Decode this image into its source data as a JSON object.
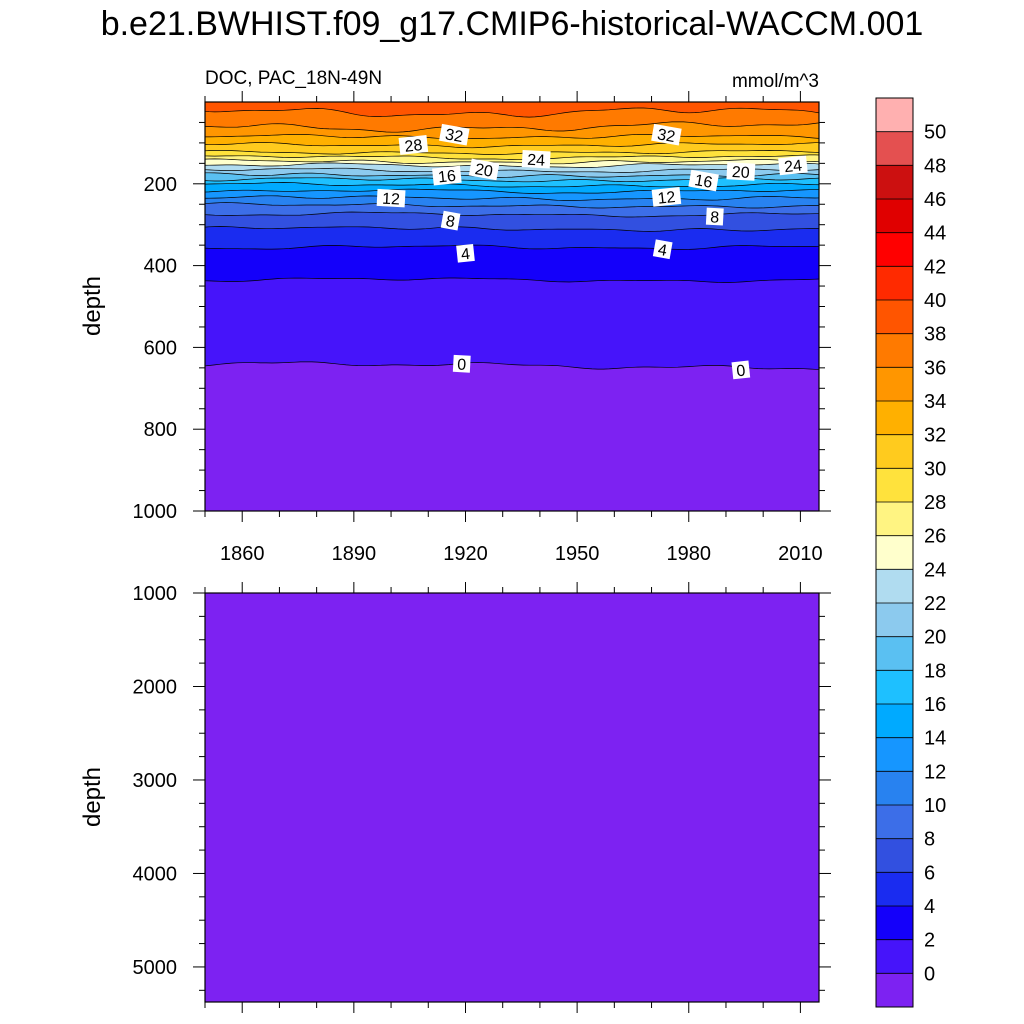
{
  "title": "b.e21.BWHIST.f09_g17.CMIP6-historical-WACCM.001",
  "chart_data": [
    {
      "panel": "upper",
      "type": "contour",
      "variable": "DOC, PAC_18N-49N",
      "units": "mmol/m^3",
      "ylabel": "depth",
      "xlim": [
        1850,
        2015
      ],
      "ylim": [
        0,
        1000
      ],
      "y_reversed": true,
      "x_ticks": [
        1860,
        1890,
        1920,
        1950,
        1980,
        2010
      ],
      "y_ticks": [
        200,
        400,
        600,
        800,
        1000
      ],
      "contour_levels": [
        0,
        2,
        4,
        6,
        8,
        10,
        12,
        14,
        16,
        18,
        20,
        22,
        24,
        26,
        28,
        30,
        32,
        34,
        36,
        38
      ],
      "level_depths": {
        "38": 25,
        "36": 60,
        "34": 85,
        "32": 105,
        "30": 122,
        "28": 135,
        "26": 145,
        "24": 155,
        "22": 167,
        "20": 178,
        "18": 190,
        "16": 203,
        "14": 218,
        "12": 235,
        "10": 253,
        "8": 275,
        "6": 310,
        "4": 355,
        "2": 435,
        "0": 645
      },
      "contour_labels": [
        {
          "text": "32",
          "x": 1917,
          "depth": 80
        },
        {
          "text": "28",
          "x": 1906,
          "depth": 105
        },
        {
          "text": "24",
          "x": 1939,
          "depth": 140
        },
        {
          "text": "20",
          "x": 1925,
          "depth": 165
        },
        {
          "text": "16",
          "x": 1915,
          "depth": 180
        },
        {
          "text": "12",
          "x": 1900,
          "depth": 235
        },
        {
          "text": "8",
          "x": 1916,
          "depth": 290
        },
        {
          "text": "4",
          "x": 1920,
          "depth": 370
        },
        {
          "text": "0",
          "x": 1919,
          "depth": 640
        },
        {
          "text": "32",
          "x": 1974,
          "depth": 80
        },
        {
          "text": "24",
          "x": 2008,
          "depth": 155
        },
        {
          "text": "20",
          "x": 1994,
          "depth": 170
        },
        {
          "text": "16",
          "x": 1984,
          "depth": 192
        },
        {
          "text": "12",
          "x": 1974,
          "depth": 232
        },
        {
          "text": "8",
          "x": 1987,
          "depth": 280
        },
        {
          "text": "4",
          "x": 1973,
          "depth": 360
        },
        {
          "text": "0",
          "x": 1994,
          "depth": 655
        }
      ]
    },
    {
      "panel": "lower",
      "type": "contour",
      "ylabel": "depth",
      "xlim": [
        1850,
        2015
      ],
      "ylim": [
        1000,
        5375
      ],
      "y_reversed": true,
      "y_ticks": [
        1000,
        2000,
        3000,
        4000,
        5000
      ],
      "fill_level": "below 0"
    }
  ],
  "colorbar": {
    "labels": [
      "50",
      "48",
      "46",
      "44",
      "42",
      "40",
      "38",
      "36",
      "34",
      "32",
      "30",
      "28",
      "26",
      "24",
      "22",
      "20",
      "18",
      "16",
      "14",
      "12",
      "10",
      "8",
      "6",
      "4",
      "2",
      "0"
    ],
    "colors": [
      "#ffb0b0",
      "#e45050",
      "#cc1010",
      "#e00000",
      "#ff0000",
      "#ff2a00",
      "#ff5500",
      "#ff7a00",
      "#ff9600",
      "#ffb000",
      "#ffcb1e",
      "#ffe23c",
      "#fff482",
      "#ffffcc",
      "#b0dcf0",
      "#8ccaee",
      "#5ac0f2",
      "#1ec0ff",
      "#00aaff",
      "#1696ff",
      "#2882f0",
      "#3c6ee8",
      "#3250e0",
      "#1a2cf0",
      "#1400fa",
      "#4614fa",
      "#7d22f2"
    ]
  }
}
